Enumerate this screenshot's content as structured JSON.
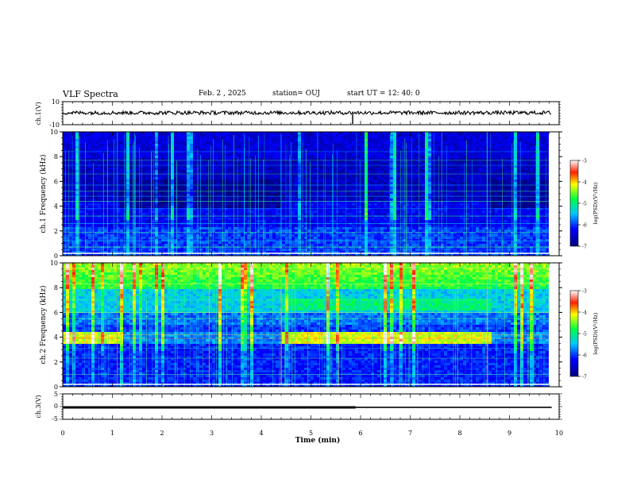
{
  "header": {
    "title": "VLF Spectra",
    "date": "Feb. 2 , 2025",
    "station": "station= OUJ",
    "start": "start UT = 12: 40: 0"
  },
  "chart_data": [
    {
      "type": "line",
      "id": "ch1-waveform",
      "ylabel": "ch.1(V)",
      "ylim": [
        -10,
        10
      ],
      "y_ticks": [
        "10",
        "-10"
      ],
      "xlim": [
        0,
        10
      ],
      "description_values": {
        "baseline_v": 0,
        "spike_minute": 5.84
      }
    },
    {
      "type": "heatmap",
      "id": "ch1-spectrogram",
      "ylabel": "ch.1 Frequency (kHz)",
      "ylim": [
        0,
        10
      ],
      "y_ticks": [
        "0",
        "2",
        "4",
        "6",
        "8",
        "10"
      ],
      "xlim": [
        0,
        9.85
      ],
      "colorbar": {
        "label": "log(PSD)(V²/Hz)",
        "range": [
          -7,
          -3
        ],
        "ticks": [
          "-3",
          "-4",
          "-5",
          "-6",
          "-7"
        ]
      }
    },
    {
      "type": "heatmap",
      "id": "ch2-spectrogram",
      "ylabel": "ch.2 Frequency (kHz)",
      "ylim": [
        0,
        10
      ],
      "y_ticks": [
        "0",
        "2",
        "4",
        "6",
        "8",
        "10"
      ],
      "xlim": [
        0,
        9.85
      ],
      "colorbar": {
        "label": "log(PSD)(V²/Hz)",
        "range": [
          -7,
          -3
        ],
        "ticks": [
          "-3",
          "-4",
          "-5",
          "-6",
          "-7"
        ]
      }
    },
    {
      "type": "line",
      "id": "ch3-waveform",
      "ylabel": "ch.3(V)",
      "ylim": [
        -5,
        5
      ],
      "y_ticks": [
        "5",
        "0",
        "-5"
      ],
      "xlim": [
        0,
        10
      ],
      "series": [
        {
          "x": [
            0,
            5.9
          ],
          "y": [
            -0.3,
            -0.3
          ]
        },
        {
          "x": [
            5.9,
            9.85
          ],
          "y": [
            -0.3,
            -0.3
          ]
        }
      ]
    }
  ],
  "xaxis": {
    "label": "Time (min)",
    "ticks": [
      "0",
      "1",
      "2",
      "3",
      "4",
      "5",
      "6",
      "7",
      "8",
      "9",
      "10"
    ]
  }
}
